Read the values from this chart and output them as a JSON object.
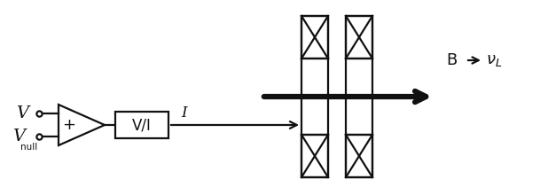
{
  "bg_color": "#ffffff",
  "line_color": "#111111",
  "V_label": "V",
  "Vnull_label": "V",
  "null_sub": "null",
  "plus_label": "+",
  "VI_label": "V/I",
  "I_label": "I",
  "B_label": "B",
  "figsize": [
    6.09,
    2.2
  ],
  "dpi": 100
}
